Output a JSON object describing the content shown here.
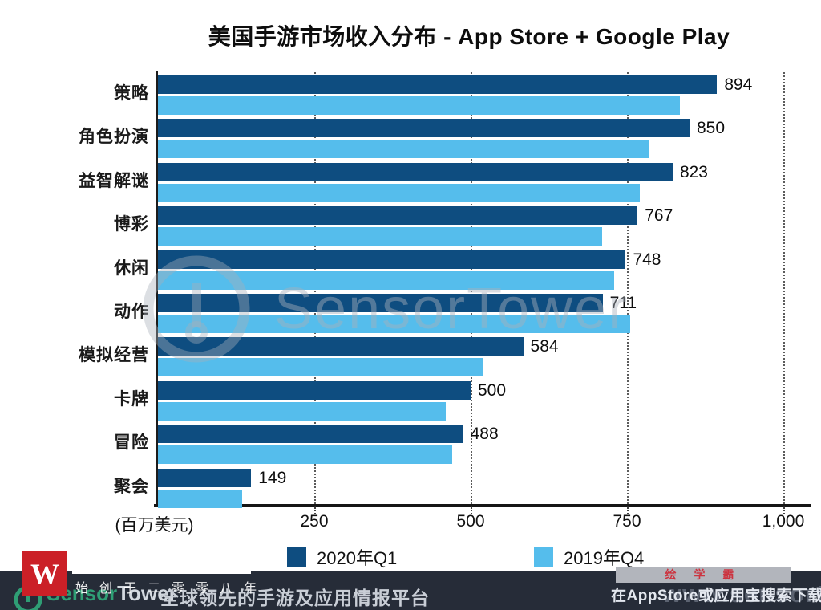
{
  "title": "美国手游市场收入分布 - App Store + Google Play",
  "chart_data": {
    "type": "bar",
    "orientation": "horizontal",
    "title": "美国手游市场收入分布 - App Store + Google Play",
    "unit_label": "(百万美元)",
    "categories": [
      "策略",
      "角色扮演",
      "益智解谜",
      "博彩",
      "休闲",
      "动作",
      "模拟经营",
      "卡牌",
      "冒险",
      "聚会"
    ],
    "series": [
      {
        "name": "2020年Q1",
        "color": "#0e4d80",
        "values": [
          894,
          850,
          823,
          767,
          748,
          711,
          584,
          500,
          488,
          149
        ],
        "value_labels_shown": true
      },
      {
        "name": "2019年Q4",
        "color": "#55bdec",
        "values": [
          835,
          785,
          770,
          710,
          730,
          755,
          520,
          460,
          470,
          135
        ],
        "value_labels_shown": false
      }
    ],
    "x_ticks": [
      250,
      500,
      750,
      1000
    ],
    "x_tick_labels": [
      "250",
      "500",
      "750",
      "1,000"
    ],
    "xlim": [
      0,
      1040
    ],
    "grid": "dotted-vertical",
    "legend_position": "bottom"
  },
  "legend": {
    "items": [
      {
        "label": "2020年Q1",
        "color": "#0e4d80"
      },
      {
        "label": "2019年Q4",
        "color": "#55bdec"
      }
    ]
  },
  "watermark": {
    "center_text": "SensorTower",
    "footer_url_text": "www.sensortower-c"
  },
  "footer": {
    "brand_sensor": "Sensor",
    "brand_tower": "Tower",
    "tagline": "全球领先的手游及应用情报平台",
    "founded_overlay": "始创于二零零八年",
    "red_logo_letter": "W",
    "band_text": "绘 学 霸",
    "download_text": "在AppStore或应用宝搜索下载"
  }
}
